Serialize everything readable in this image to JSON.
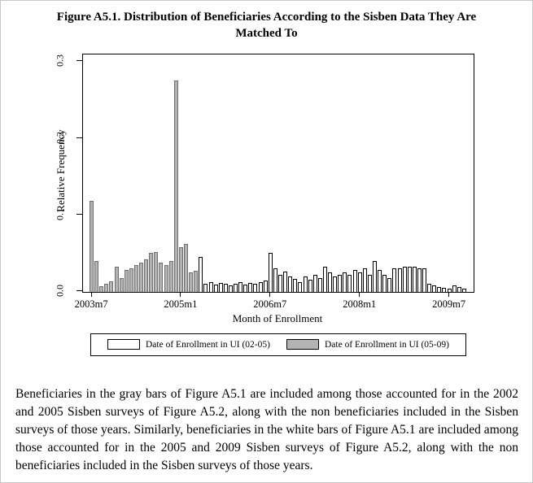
{
  "figure": {
    "title": "Figure A5.1. Distribution of Beneficiaries According to the Sisben Data They Are Matched To"
  },
  "chart_data": {
    "type": "bar",
    "title": "",
    "xlabel": "Month of Enrollment",
    "ylabel": "Relative Frequency",
    "ylim": [
      0,
      0.3
    ],
    "grid": false,
    "legend_position": "bottom",
    "yticks": [
      0,
      0.1,
      0.2,
      0.3
    ],
    "ytick_labels": [
      "0.0",
      "0.1",
      "0.2",
      "0.3"
    ],
    "xtick_labels": [
      "2003m7",
      "2005m1",
      "2006m7",
      "2008m1",
      "2009m7"
    ],
    "xtick_month_indices": [
      0,
      18,
      36,
      54,
      72
    ],
    "months_start": "2003m7",
    "months_total": 76,
    "series": [
      {
        "name": "Date of Enrollment in UI (02-05)",
        "color": "#ffffff",
        "border": "#000000",
        "values": [
          0,
          0,
          0,
          0,
          0,
          0,
          0,
          0,
          0,
          0,
          0,
          0,
          0,
          0,
          0,
          0,
          0,
          0,
          0,
          0,
          0,
          0,
          0.045,
          0.01,
          0.012,
          0.009,
          0.011,
          0.01,
          0.008,
          0.01,
          0.012,
          0.009,
          0.011,
          0.01,
          0.012,
          0.014,
          0.05,
          0.03,
          0.022,
          0.026,
          0.02,
          0.016,
          0.012,
          0.02,
          0.015,
          0.022,
          0.018,
          0.032,
          0.025,
          0.02,
          0.022,
          0.025,
          0.022,
          0.028,
          0.025,
          0.03,
          0.022,
          0.04,
          0.028,
          0.022,
          0.018,
          0.03,
          0.03,
          0.032,
          0.032,
          0.032,
          0.03,
          0.03,
          0.01,
          0.008,
          0.006,
          0.005,
          0.004,
          0.008,
          0.006,
          0.004
        ]
      },
      {
        "name": "Date of Enrollment in UI (05-09)",
        "color": "#b3b3b3",
        "border": "#6e6e6e",
        "values": [
          0.118,
          0.04,
          0.007,
          0.01,
          0.013,
          0.032,
          0.018,
          0.028,
          0.03,
          0.034,
          0.038,
          0.042,
          0.05,
          0.052,
          0.038,
          0.034,
          0.04,
          0.275,
          0.058,
          0.062,
          0.025,
          0.027,
          0.008,
          0.007,
          0.008,
          0.006,
          0.008,
          0.006,
          0.005,
          0.006,
          0.005,
          0.004,
          0.005,
          0.004,
          0.005,
          0.004,
          0.006,
          0.005,
          0.008,
          0.006,
          0.005,
          0.004,
          0.004,
          0.004,
          0.003,
          0.003,
          0.003,
          0.003,
          0.002,
          0,
          0,
          0,
          0,
          0,
          0,
          0,
          0,
          0,
          0,
          0,
          0,
          0,
          0,
          0,
          0,
          0,
          0,
          0,
          0,
          0,
          0,
          0,
          0,
          0,
          0,
          0
        ]
      }
    ]
  },
  "caption": "Beneficiaries in the gray bars of Figure A5.1 are included among those accounted for in the 2002 and 2005 Sisben surveys of Figure A5.2, along with the non beneficiaries included in the Sisben surveys of those years. Similarly, beneficiaries in the white bars of Figure A5.1 are included among those accounted for in the 2005 and 2009 Sisben surveys of Figure A5.2, along with the non beneficiaries included in the Sisben surveys of those years."
}
